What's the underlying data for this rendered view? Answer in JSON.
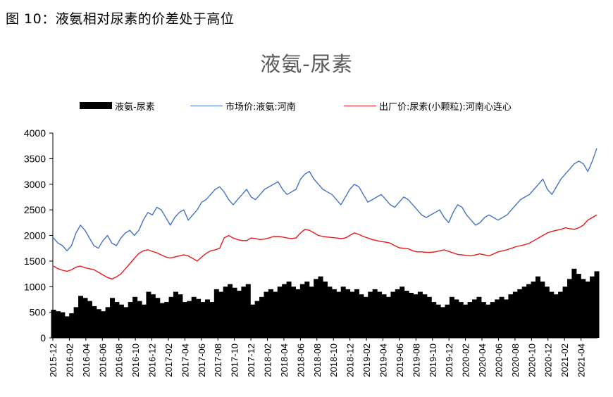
{
  "figure_caption": "图 10：液氨相对尿素的价差处于高位",
  "chart_data": {
    "type": "area+line",
    "title": "液氨-尿素",
    "ylim": [
      0,
      4000
    ],
    "yticks": [
      0,
      500,
      1000,
      1500,
      2000,
      2500,
      3000,
      3500,
      4000
    ],
    "x_tick_labels": [
      "2015-12",
      "2016-02",
      "2016-04",
      "2016-06",
      "2016-08",
      "2016-10",
      "2016-12",
      "2017-02",
      "2017-04",
      "2017-06",
      "2017-08",
      "2017-10",
      "2017-12",
      "2018-02",
      "2018-04",
      "2018-06",
      "2018-08",
      "2018-10",
      "2018-12",
      "2019-02",
      "2019-04",
      "2019-06",
      "2019-08",
      "2019-10",
      "2019-12",
      "2020-02",
      "2020-04",
      "2020-06",
      "2020-08",
      "2020-10",
      "2020-12",
      "2021-02",
      "2021-04"
    ],
    "x_start": "2015-12",
    "x_end": "2021-06",
    "series": [
      {
        "name": "液氨-尿素",
        "kind": "area",
        "color": "#000000",
        "values": [
          550,
          520,
          500,
          420,
          480,
          600,
          820,
          780,
          720,
          620,
          560,
          520,
          600,
          780,
          700,
          650,
          600,
          700,
          800,
          720,
          650,
          900,
          850,
          780,
          680,
          700,
          800,
          900,
          850,
          700,
          720,
          800,
          760,
          700,
          750,
          700,
          950,
          900,
          1000,
          1050,
          980,
          920,
          1000,
          1050,
          650,
          720,
          800,
          900,
          950,
          900,
          1000,
          1050,
          1100,
          1000,
          950,
          1050,
          1100,
          1000,
          1150,
          1200,
          1100,
          1000,
          950,
          900,
          1000,
          950,
          900,
          950,
          850,
          800,
          900,
          950,
          900,
          850,
          800,
          900,
          950,
          1000,
          920,
          880,
          850,
          900,
          850,
          800,
          700,
          650,
          600,
          650,
          800,
          750,
          700,
          650,
          700,
          750,
          800,
          700,
          650,
          700,
          750,
          800,
          750,
          850,
          900,
          950,
          1000,
          1050,
          1100,
          1200,
          1100,
          1000,
          900,
          850,
          900,
          1000,
          1150,
          1350,
          1250,
          1150,
          1100,
          1200,
          1300
        ]
      },
      {
        "name": "市场价:液氨:河南",
        "kind": "line",
        "color": "#4472c4",
        "values": [
          1950,
          1850,
          1800,
          1700,
          1800,
          2050,
          2200,
          2100,
          1950,
          1800,
          1750,
          1900,
          2000,
          1850,
          1800,
          1950,
          2050,
          2100,
          2000,
          2100,
          2300,
          2450,
          2400,
          2550,
          2500,
          2350,
          2200,
          2350,
          2450,
          2500,
          2300,
          2400,
          2500,
          2650,
          2700,
          2800,
          2900,
          2950,
          2850,
          2700,
          2600,
          2700,
          2800,
          2900,
          2750,
          2700,
          2800,
          2900,
          2950,
          3000,
          3050,
          2900,
          2800,
          2850,
          2900,
          3100,
          3200,
          3250,
          3100,
          3000,
          2900,
          2850,
          2800,
          2700,
          2600,
          2750,
          2900,
          3000,
          2950,
          2800,
          2650,
          2700,
          2750,
          2800,
          2700,
          2600,
          2550,
          2650,
          2750,
          2700,
          2600,
          2500,
          2400,
          2350,
          2400,
          2450,
          2500,
          2350,
          2250,
          2450,
          2600,
          2550,
          2400,
          2300,
          2200,
          2250,
          2350,
          2400,
          2350,
          2300,
          2350,
          2400,
          2500,
          2600,
          2700,
          2750,
          2800,
          2900,
          3000,
          3100,
          2900,
          2800,
          2950,
          3100,
          3200,
          3300,
          3400,
          3450,
          3400,
          3250,
          3450,
          3700
        ]
      },
      {
        "name": "出厂价:尿素(小颗粒):河南心连心",
        "kind": "line",
        "color": "#e31a1c",
        "values": [
          1400,
          1350,
          1320,
          1300,
          1330,
          1380,
          1400,
          1370,
          1350,
          1330,
          1280,
          1230,
          1180,
          1150,
          1190,
          1250,
          1350,
          1450,
          1550,
          1650,
          1700,
          1720,
          1690,
          1660,
          1620,
          1580,
          1560,
          1580,
          1600,
          1620,
          1600,
          1550,
          1500,
          1580,
          1650,
          1700,
          1720,
          1750,
          1950,
          2000,
          1950,
          1920,
          1900,
          1900,
          1950,
          1940,
          1920,
          1930,
          1950,
          1980,
          1980,
          1970,
          1950,
          1940,
          1950,
          2050,
          2120,
          2100,
          2050,
          2000,
          1980,
          1970,
          1960,
          1950,
          1940,
          1950,
          2000,
          2050,
          2020,
          1980,
          1950,
          1920,
          1900,
          1880,
          1870,
          1850,
          1800,
          1760,
          1750,
          1740,
          1700,
          1680,
          1680,
          1670,
          1670,
          1680,
          1700,
          1720,
          1690,
          1660,
          1630,
          1620,
          1610,
          1600,
          1620,
          1640,
          1620,
          1600,
          1640,
          1680,
          1700,
          1720,
          1750,
          1780,
          1800,
          1820,
          1850,
          1900,
          1950,
          2000,
          2050,
          2080,
          2100,
          2120,
          2150,
          2130,
          2120,
          2150,
          2200,
          2300,
          2350,
          2400
        ]
      }
    ]
  }
}
